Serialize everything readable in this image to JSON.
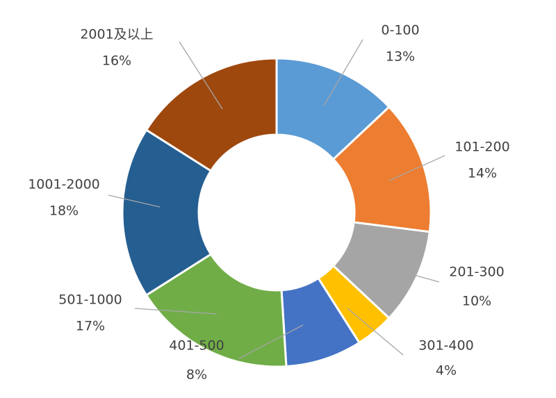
{
  "chart_data": {
    "type": "pie",
    "variant": "donut",
    "title": "",
    "slices": [
      {
        "label": "0-100",
        "value": 13,
        "display": "13%",
        "color": "#5B9BD5"
      },
      {
        "label": "101-200",
        "value": 14,
        "display": "14%",
        "color": "#ED7D31"
      },
      {
        "label": "201-300",
        "value": 10,
        "display": "10%",
        "color": "#A5A5A5"
      },
      {
        "label": "301-400",
        "value": 4,
        "display": "4%",
        "color": "#FFC000"
      },
      {
        "label": "401-500",
        "value": 8,
        "display": "8%",
        "color": "#4472C4"
      },
      {
        "label": "501-1000",
        "value": 17,
        "display": "17%",
        "color": "#70AD47"
      },
      {
        "label": "1001-2000",
        "value": 18,
        "display": "18%",
        "color": "#255E91"
      },
      {
        "label": "2001及以上",
        "value": 16,
        "display": "16%",
        "color": "#9E480E"
      }
    ],
    "legend": "none",
    "data_labels": "outside-with-leader-lines"
  }
}
